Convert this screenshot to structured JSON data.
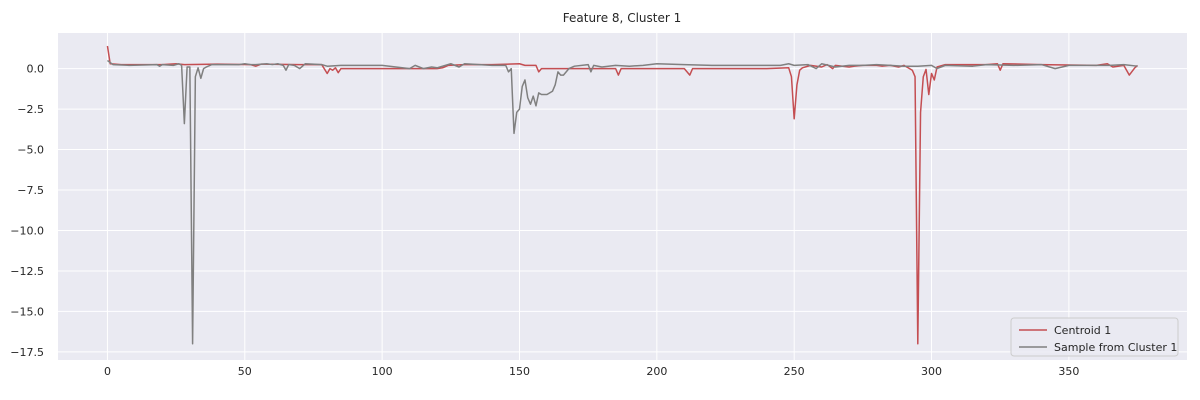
{
  "chart_data": {
    "type": "line",
    "title": "Feature 8, Cluster 1",
    "xlabel": "",
    "ylabel": "",
    "xlim": [
      -18,
      393
    ],
    "ylim": [
      -18.0,
      2.2
    ],
    "xticks": [
      0,
      50,
      100,
      150,
      200,
      250,
      300,
      350
    ],
    "yticks": [
      0.0,
      -2.5,
      -5.0,
      -7.5,
      -10.0,
      -12.5,
      -15.0,
      -17.5
    ],
    "ytick_labels": [
      "0.0",
      "−2.5",
      "−5.0",
      "−7.5",
      "−10.0",
      "−12.5",
      "−15.0",
      "−17.5"
    ],
    "grid": true,
    "legend_position": "bottom-right",
    "background": "#eaeaf2",
    "series": [
      {
        "name": "Centroid 1",
        "color": "#c44e52",
        "points": [
          [
            0,
            1.4
          ],
          [
            1,
            0.3
          ],
          [
            5,
            0.25
          ],
          [
            20,
            0.25
          ],
          [
            25,
            0.3
          ],
          [
            28,
            0.25
          ],
          [
            40,
            0.28
          ],
          [
            52,
            0.25
          ],
          [
            54,
            0.15
          ],
          [
            56,
            0.28
          ],
          [
            70,
            0.25
          ],
          [
            78,
            0.25
          ],
          [
            80,
            -0.3
          ],
          [
            81,
            0.0
          ],
          [
            82,
            -0.1
          ],
          [
            83,
            0.05
          ],
          [
            84,
            -0.25
          ],
          [
            85,
            0.0
          ],
          [
            100,
            0.0
          ],
          [
            120,
            0.0
          ],
          [
            122,
            0.05
          ],
          [
            124,
            0.2
          ],
          [
            130,
            0.25
          ],
          [
            140,
            0.25
          ],
          [
            150,
            0.3
          ],
          [
            152,
            0.2
          ],
          [
            156,
            0.2
          ],
          [
            157,
            -0.2
          ],
          [
            158,
            0.0
          ],
          [
            170,
            0.0
          ],
          [
            180,
            0.0
          ],
          [
            185,
            0.0
          ],
          [
            186,
            -0.4
          ],
          [
            187,
            0.0
          ],
          [
            200,
            0.0
          ],
          [
            210,
            0.0
          ],
          [
            212,
            -0.4
          ],
          [
            213,
            0.0
          ],
          [
            225,
            0.0
          ],
          [
            240,
            0.0
          ],
          [
            248,
            0.05
          ],
          [
            249,
            -0.5
          ],
          [
            250,
            -3.1
          ],
          [
            251,
            -1.0
          ],
          [
            252,
            -0.1
          ],
          [
            253,
            0.05
          ],
          [
            256,
            0.2
          ],
          [
            260,
            0.1
          ],
          [
            262,
            0.25
          ],
          [
            264,
            0.0
          ],
          [
            265,
            0.2
          ],
          [
            270,
            0.1
          ],
          [
            272,
            0.15
          ],
          [
            275,
            0.2
          ],
          [
            280,
            0.2
          ],
          [
            282,
            0.15
          ],
          [
            285,
            0.2
          ],
          [
            288,
            0.1
          ],
          [
            290,
            0.2
          ],
          [
            292,
            0.0
          ],
          [
            293,
            -0.1
          ],
          [
            294,
            -0.5
          ],
          [
            295,
            -17.0
          ],
          [
            296,
            -2.7
          ],
          [
            297,
            -0.5
          ],
          [
            298,
            -0.05
          ],
          [
            299,
            -1.6
          ],
          [
            300,
            -0.3
          ],
          [
            301,
            -0.7
          ],
          [
            302,
            0.1
          ],
          [
            305,
            0.25
          ],
          [
            320,
            0.25
          ],
          [
            324,
            0.3
          ],
          [
            325,
            -0.1
          ],
          [
            326,
            0.3
          ],
          [
            340,
            0.25
          ],
          [
            360,
            0.2
          ],
          [
            364,
            0.3
          ],
          [
            366,
            0.1
          ],
          [
            370,
            0.2
          ],
          [
            372,
            -0.4
          ],
          [
            374,
            0.05
          ],
          [
            375,
            0.2
          ]
        ]
      },
      {
        "name": "Sample from Cluster 1",
        "color": "#808080",
        "points": [
          [
            0,
            0.5
          ],
          [
            2,
            0.25
          ],
          [
            8,
            0.2
          ],
          [
            18,
            0.25
          ],
          [
            19,
            0.15
          ],
          [
            20,
            0.25
          ],
          [
            24,
            0.2
          ],
          [
            26,
            0.3
          ],
          [
            27,
            0.2
          ],
          [
            28,
            -3.4
          ],
          [
            29,
            0.1
          ],
          [
            30,
            0.1
          ],
          [
            31,
            -17.0
          ],
          [
            32,
            -0.5
          ],
          [
            33,
            0.05
          ],
          [
            34,
            -0.6
          ],
          [
            35,
            0.0
          ],
          [
            36,
            0.1
          ],
          [
            38,
            0.25
          ],
          [
            48,
            0.25
          ],
          [
            50,
            0.3
          ],
          [
            52,
            0.25
          ],
          [
            54,
            0.25
          ],
          [
            58,
            0.3
          ],
          [
            60,
            0.25
          ],
          [
            62,
            0.3
          ],
          [
            64,
            0.2
          ],
          [
            65,
            -0.1
          ],
          [
            66,
            0.25
          ],
          [
            68,
            0.2
          ],
          [
            70,
            0.0
          ],
          [
            72,
            0.3
          ],
          [
            78,
            0.25
          ],
          [
            80,
            0.15
          ],
          [
            85,
            0.2
          ],
          [
            95,
            0.2
          ],
          [
            100,
            0.2
          ],
          [
            105,
            0.1
          ],
          [
            110,
            0.0
          ],
          [
            112,
            0.2
          ],
          [
            115,
            0.0
          ],
          [
            118,
            0.1
          ],
          [
            120,
            0.05
          ],
          [
            125,
            0.3
          ],
          [
            128,
            0.1
          ],
          [
            130,
            0.3
          ],
          [
            140,
            0.2
          ],
          [
            145,
            0.2
          ],
          [
            146,
            -0.2
          ],
          [
            147,
            0.0
          ],
          [
            148,
            -4.0
          ],
          [
            149,
            -2.7
          ],
          [
            150,
            -2.5
          ],
          [
            151,
            -1.1
          ],
          [
            152,
            -0.7
          ],
          [
            153,
            -1.8
          ],
          [
            154,
            -2.2
          ],
          [
            155,
            -1.7
          ],
          [
            156,
            -2.3
          ],
          [
            157,
            -1.5
          ],
          [
            158,
            -1.6
          ],
          [
            160,
            -1.6
          ],
          [
            162,
            -1.4
          ],
          [
            163,
            -1.0
          ],
          [
            164,
            -0.2
          ],
          [
            165,
            -0.4
          ],
          [
            166,
            -0.4
          ],
          [
            168,
            0.0
          ],
          [
            170,
            0.15
          ],
          [
            175,
            0.25
          ],
          [
            176,
            -0.2
          ],
          [
            177,
            0.2
          ],
          [
            180,
            0.1
          ],
          [
            185,
            0.2
          ],
          [
            190,
            0.15
          ],
          [
            195,
            0.2
          ],
          [
            200,
            0.3
          ],
          [
            210,
            0.25
          ],
          [
            220,
            0.2
          ],
          [
            230,
            0.2
          ],
          [
            240,
            0.2
          ],
          [
            245,
            0.2
          ],
          [
            248,
            0.3
          ],
          [
            250,
            0.2
          ],
          [
            255,
            0.25
          ],
          [
            258,
            0.0
          ],
          [
            260,
            0.3
          ],
          [
            265,
            0.1
          ],
          [
            270,
            0.2
          ],
          [
            275,
            0.2
          ],
          [
            280,
            0.25
          ],
          [
            285,
            0.2
          ],
          [
            290,
            0.15
          ],
          [
            295,
            0.15
          ],
          [
            300,
            0.2
          ],
          [
            302,
            0.0
          ],
          [
            305,
            0.2
          ],
          [
            315,
            0.15
          ],
          [
            320,
            0.25
          ],
          [
            330,
            0.2
          ],
          [
            340,
            0.25
          ],
          [
            345,
            0.0
          ],
          [
            350,
            0.2
          ],
          [
            360,
            0.2
          ],
          [
            365,
            0.2
          ],
          [
            370,
            0.25
          ],
          [
            375,
            0.15
          ]
        ]
      }
    ]
  }
}
